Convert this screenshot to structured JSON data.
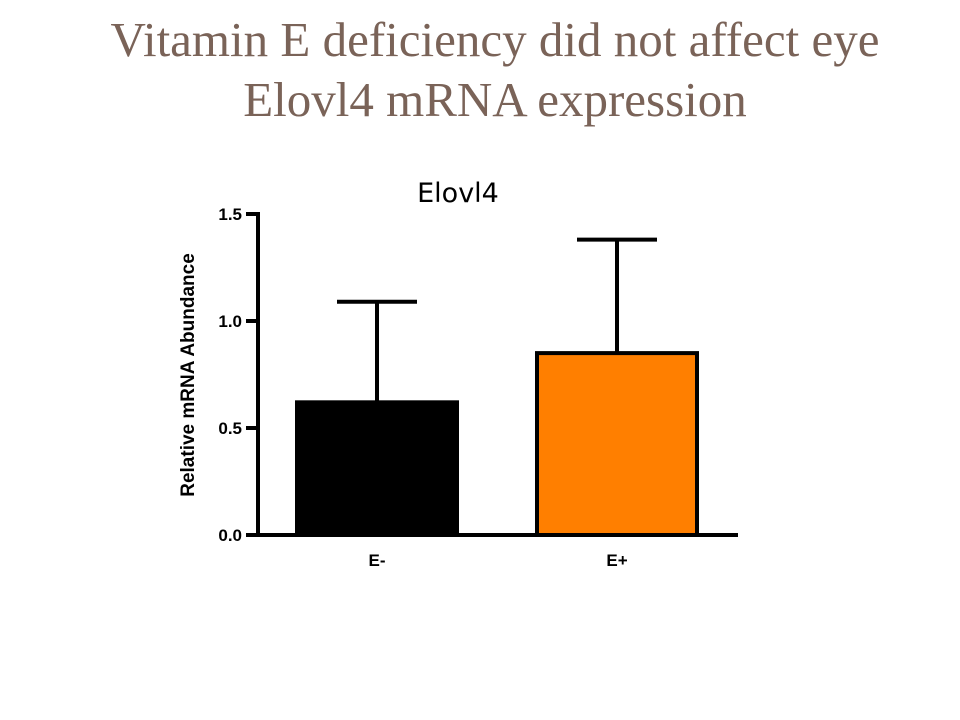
{
  "slide": {
    "title_line1": "Vitamin E deficiency did not affect eye",
    "title_line2": "Elovl4 mRNA expression"
  },
  "chart_data": {
    "type": "bar",
    "title": "Elovl4",
    "xlabel": "",
    "ylabel": "Relative mRNA Abundance",
    "categories": [
      "E-",
      "E+"
    ],
    "values": [
      0.62,
      0.85
    ],
    "error_upper": [
      1.09,
      1.38
    ],
    "colors": [
      "#000000",
      "#ff7f00"
    ],
    "ylim": [
      0,
      1.5
    ],
    "yticks": [
      0.0,
      0.5,
      1.0,
      1.5
    ],
    "ytick_labels": [
      "0.0",
      "0.5",
      "1.0",
      "1.5"
    ],
    "grid": false
  }
}
